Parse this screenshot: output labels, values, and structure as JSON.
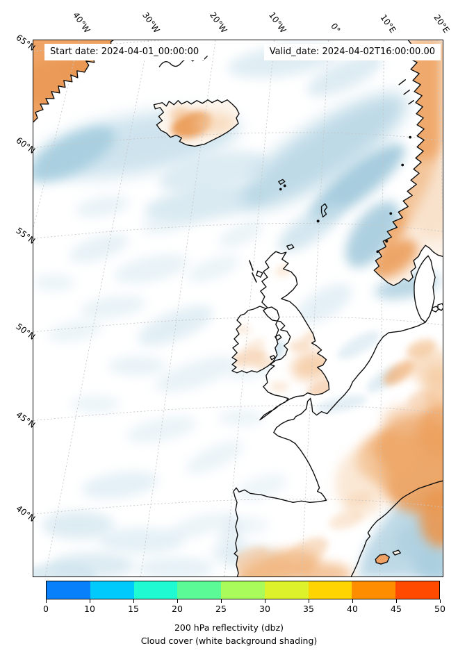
{
  "header": {
    "start_date": "Start date: 2024-04-01_00:00:00",
    "valid_date": "Valid_date: 2024-04-02T16:00:00.00"
  },
  "axes": {
    "lon_tick_labels": [
      "40°W",
      "30°W",
      "20°W",
      "10°W",
      "0°",
      "10°E",
      "20°E"
    ],
    "lat_tick_labels": [
      "65°N",
      "60°N",
      "55°N",
      "50°N",
      "45°N",
      "40°N"
    ]
  },
  "colorbar": {
    "tick_labels": [
      "0",
      "10",
      "15",
      "20",
      "25",
      "30",
      "35",
      "40",
      "45",
      "50"
    ],
    "segment_colors": [
      "#0780fa",
      "#00c9fb",
      "#1ffad3",
      "#5bfa97",
      "#a9fa5b",
      "#ddf22b",
      "#ffd400",
      "#ff8d00",
      "#ff4a00"
    ],
    "title_line1": "200 hPa reflectivity (dbz)",
    "title_line2": "Cloud cover (white background shading)"
  },
  "map": {
    "cloud_shading_color": "#efa264",
    "reflectivity_shading_color": "#a9cee0",
    "coastline_color": "#0d0d0d",
    "gridline_color": "#c6c6c6"
  }
}
